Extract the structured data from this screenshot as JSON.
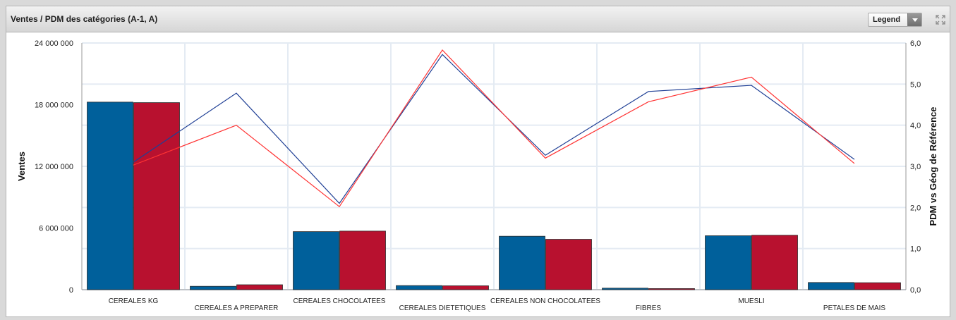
{
  "header": {
    "title": "Ventes / PDM des catégories (A-1, A)",
    "legend_label": "Legend"
  },
  "colors": {
    "bar_a": "#00609b",
    "bar_b": "#b8112f",
    "line_a": "#1f3f95",
    "line_b": "#ff3333"
  },
  "chart_data": {
    "type": "bar",
    "categories": [
      "CEREALES KG",
      "CEREALES A PREPARER",
      "CEREALES CHOCOLATEES",
      "CEREALES DIETETIQUES",
      "CEREALES NON CHOCOLATEES",
      "FIBRES",
      "MUESLI",
      "PETALES DE MAIS"
    ],
    "series": [
      {
        "type": "bar",
        "axis": "left",
        "values": [
          18250000,
          330000,
          5650000,
          400000,
          5200000,
          150000,
          5250000,
          700000
        ]
      },
      {
        "type": "bar",
        "axis": "left",
        "values": [
          18200000,
          480000,
          5700000,
          380000,
          4900000,
          110000,
          5300000,
          680000
        ]
      },
      {
        "type": "line",
        "axis": "right",
        "values": [
          3.1,
          4.78,
          2.1,
          5.72,
          3.27,
          4.82,
          4.97,
          3.17
        ]
      },
      {
        "type": "line",
        "axis": "right",
        "values": [
          3.03,
          4.0,
          2.02,
          5.83,
          3.2,
          4.57,
          5.17,
          3.07
        ]
      }
    ],
    "xlabel": "",
    "ylabel": "Ventes",
    "y2label": "PDM vs Géog de Référence",
    "ylim": [
      0,
      24000000
    ],
    "y2lim": [
      0,
      6
    ],
    "yticks": [
      "0",
      "6 000 000",
      "12 000 000",
      "18 000 000",
      "24 000 000"
    ],
    "y2ticks": [
      "0,0",
      "1,0",
      "2,0",
      "3,0",
      "4,0",
      "5,0",
      "6,0"
    ],
    "grid": true,
    "legend": "none"
  }
}
